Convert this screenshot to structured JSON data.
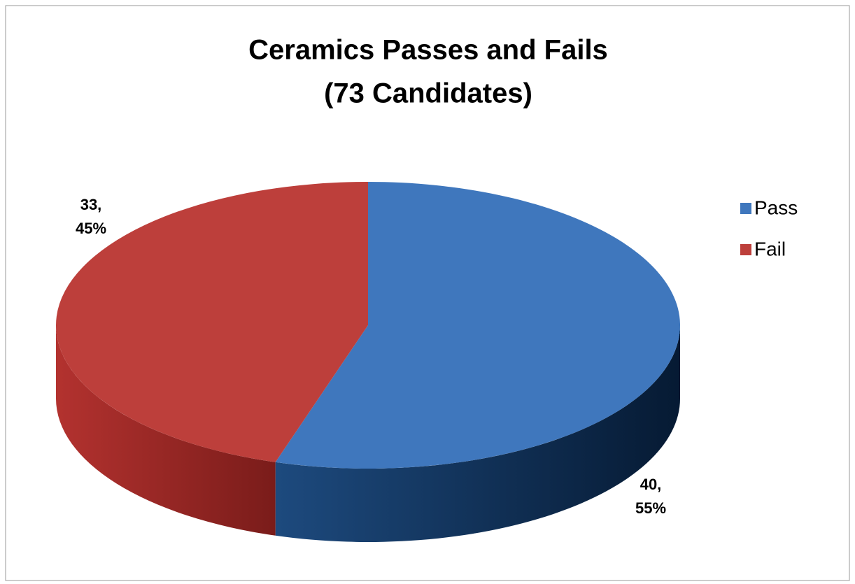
{
  "chart_data": {
    "type": "pie",
    "title": [
      "Ceramics Passes and Fails",
      "(73 Candidates)"
    ],
    "categories": [
      "Pass",
      "Fail"
    ],
    "values": [
      40,
      33
    ],
    "value_labels": [
      [
        "40,",
        "55%"
      ],
      [
        "33,",
        "45%"
      ]
    ],
    "colors": [
      "#3f77bd",
      "#bd3f3b"
    ],
    "legend": "right"
  }
}
